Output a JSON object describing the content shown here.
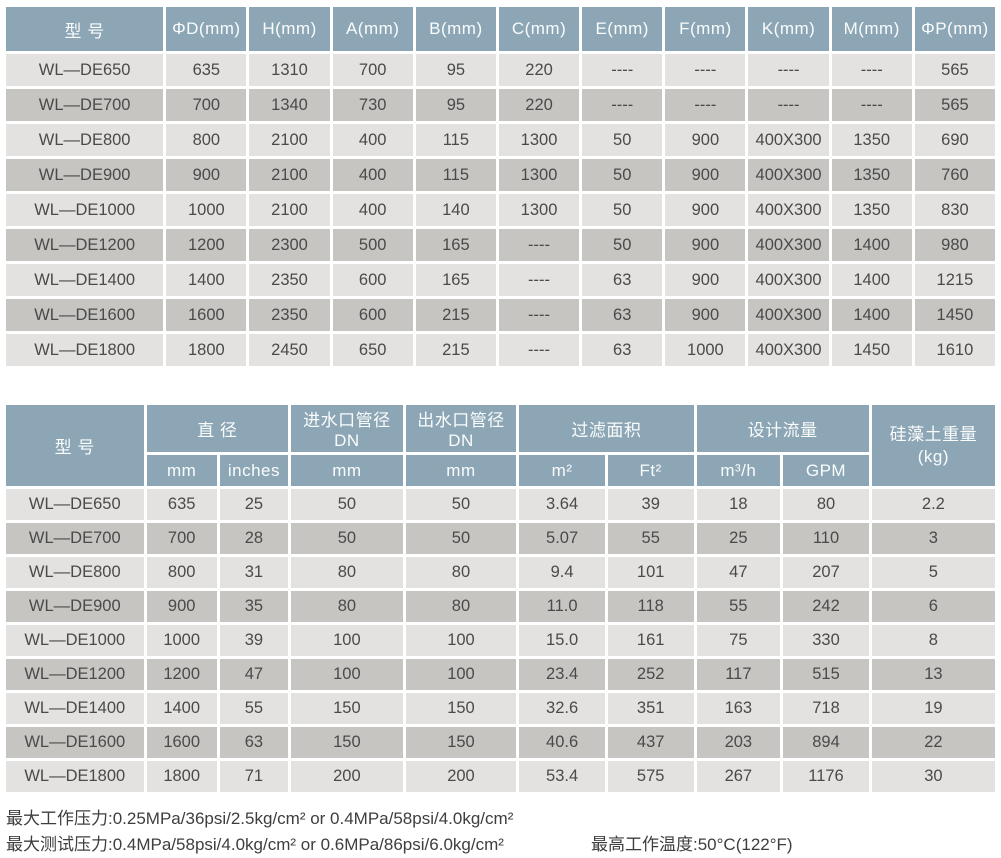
{
  "colors": {
    "header_bg": "#8ca6b6",
    "header_text": "#fafcfc",
    "row_light": "#e3e2e0",
    "row_dark": "#c6c5c2",
    "body_text": "#4a4a4a"
  },
  "table1": {
    "headers": [
      "型 号",
      "ΦD(mm)",
      "H(mm)",
      "A(mm)",
      "B(mm)",
      "C(mm)",
      "E(mm)",
      "F(mm)",
      "K(mm)",
      "M(mm)",
      "ΦP(mm)"
    ],
    "rows": [
      [
        "WL—DE650",
        "635",
        "1310",
        "700",
        "95",
        "220",
        "----",
        "----",
        "----",
        "----",
        "565"
      ],
      [
        "WL—DE700",
        "700",
        "1340",
        "730",
        "95",
        "220",
        "----",
        "----",
        "----",
        "----",
        "565"
      ],
      [
        "WL—DE800",
        "800",
        "2100",
        "400",
        "115",
        "1300",
        "50",
        "900",
        "400X300",
        "1350",
        "690"
      ],
      [
        "WL—DE900",
        "900",
        "2100",
        "400",
        "115",
        "1300",
        "50",
        "900",
        "400X300",
        "1350",
        "760"
      ],
      [
        "WL—DE1000",
        "1000",
        "2100",
        "400",
        "140",
        "1300",
        "50",
        "900",
        "400X300",
        "1350",
        "830"
      ],
      [
        "WL—DE1200",
        "1200",
        "2300",
        "500",
        "165",
        "----",
        "50",
        "900",
        "400X300",
        "1400",
        "980"
      ],
      [
        "WL—DE1400",
        "1400",
        "2350",
        "600",
        "165",
        "----",
        "63",
        "900",
        "400X300",
        "1400",
        "1215"
      ],
      [
        "WL—DE1600",
        "1600",
        "2350",
        "600",
        "215",
        "----",
        "63",
        "900",
        "400X300",
        "1400",
        "1450"
      ],
      [
        "WL—DE1800",
        "1800",
        "2450",
        "650",
        "215",
        "----",
        "63",
        "1000",
        "400X300",
        "1450",
        "1610"
      ]
    ]
  },
  "table2": {
    "header": {
      "model": "型 号",
      "diameter": "直 径",
      "diameter_mm": "mm",
      "diameter_inches": "inches",
      "inlet": "进水口管径DN",
      "inlet_mm": "mm",
      "outlet": "出水口管径DN",
      "outlet_mm": "mm",
      "filter_area": "过滤面积",
      "area_m2": "m²",
      "area_ft2": "Ft²",
      "flow": "设计流量",
      "flow_m3h": "m³/h",
      "flow_gpm": "GPM",
      "weight_line1": "硅藻土重量",
      "weight_line2": "(kg)"
    },
    "rows": [
      [
        "WL—DE650",
        "635",
        "25",
        "50",
        "50",
        "3.64",
        "39",
        "18",
        "80",
        "2.2"
      ],
      [
        "WL—DE700",
        "700",
        "28",
        "50",
        "50",
        "5.07",
        "55",
        "25",
        "110",
        "3"
      ],
      [
        "WL—DE800",
        "800",
        "31",
        "80",
        "80",
        "9.4",
        "101",
        "47",
        "207",
        "5"
      ],
      [
        "WL—DE900",
        "900",
        "35",
        "80",
        "80",
        "11.0",
        "118",
        "55",
        "242",
        "6"
      ],
      [
        "WL—DE1000",
        "1000",
        "39",
        "100",
        "100",
        "15.0",
        "161",
        "75",
        "330",
        "8"
      ],
      [
        "WL—DE1200",
        "1200",
        "47",
        "100",
        "100",
        "23.4",
        "252",
        "117",
        "515",
        "13"
      ],
      [
        "WL—DE1400",
        "1400",
        "55",
        "150",
        "150",
        "32.6",
        "351",
        "163",
        "718",
        "19"
      ],
      [
        "WL—DE1600",
        "1600",
        "63",
        "150",
        "150",
        "40.6",
        "437",
        "203",
        "894",
        "22"
      ],
      [
        "WL—DE1800",
        "1800",
        "71",
        "200",
        "200",
        "53.4",
        "575",
        "267",
        "1176",
        "30"
      ]
    ]
  },
  "footer": {
    "line1": "最大工作压力:0.25MPa/36psi/2.5kg/cm² or 0.4MPa/58psi/4.0kg/cm²",
    "line2": "最大测试压力:0.4MPa/58psi/4.0kg/cm² or 0.6MPa/86psi/6.0kg/cm²",
    "temperature": "最高工作温度:50°C(122°F)"
  }
}
